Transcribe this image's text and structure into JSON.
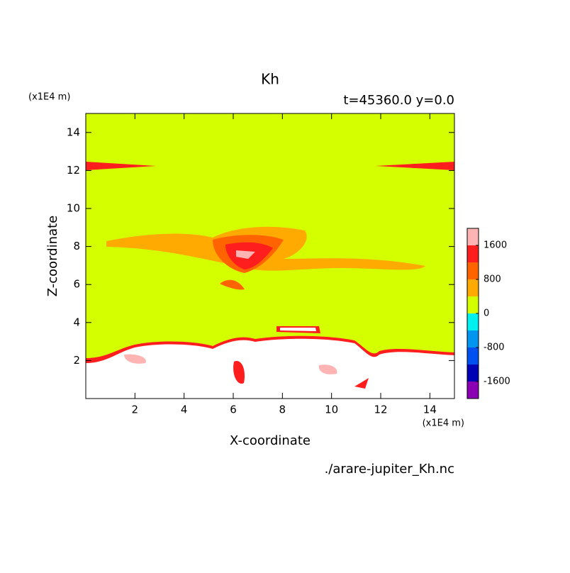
{
  "chart_data": {
    "type": "contour",
    "title": "Kh",
    "subtitle": "t=45360.0 y=0.0",
    "x_label": "X-coordinate",
    "y_label": "Z-coordinate",
    "x_unit": "(x1E4 m)",
    "y_unit": "(x1E4 m)",
    "source": "./arare-jupiter_Kh.nc",
    "xlim": [
      0,
      15
    ],
    "ylim": [
      0,
      15
    ],
    "xticks": [
      2,
      4,
      6,
      8,
      10,
      12,
      14
    ],
    "yticks": [
      2,
      4,
      6,
      8,
      10,
      12,
      14
    ],
    "levels": [
      -2000,
      -1600,
      -1200,
      -800,
      -400,
      0,
      400,
      800,
      1200,
      1600,
      2000
    ],
    "colors": [
      "#8c00b4",
      "#0000b4",
      "#0050f0",
      "#0096f0",
      "#00f0f0",
      "#d4ff00",
      "#ffaa00",
      "#ff6400",
      "#ff1e1e",
      "#ffb4b4"
    ],
    "colorbar_ticks": [
      -1600,
      -800,
      0,
      800,
      1600
    ]
  }
}
